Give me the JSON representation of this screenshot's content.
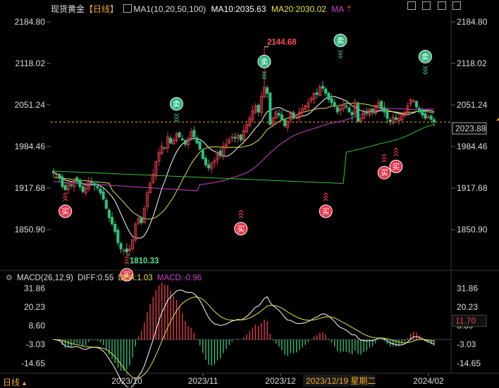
{
  "header": {
    "title": "现货黄金",
    "period": "【日线】",
    "ma_label": "MA1(10,20,50,100)",
    "ma10": "MA10:2035.63",
    "ma20": "MA20:2030.02",
    "ma_more": "MA"
  },
  "toolbar": {
    "timeframe_label": "日线"
  },
  "macd_header": {
    "label": "MACD(26,12,9)",
    "diff": "DIFF:0.55",
    "dea": "DEA:1.03",
    "macd": "MACD:-0.96"
  },
  "price_axis": {
    "ticks": [
      "2184.80",
      "2118.02",
      "2051.24",
      "1984.46",
      "1917.68",
      "1850.90"
    ],
    "tick_values": [
      2184.8,
      2118.02,
      2051.24,
      1984.46,
      1917.68,
      1850.9
    ],
    "current_price": "2023.88",
    "current_value": 2023.88,
    "high_label": "2144.68",
    "high_value": 2144.68,
    "low_label": "1810.33",
    "low_value": 1810.33
  },
  "macd_axis": {
    "ticks": [
      "31.86",
      "20.23",
      "8.60",
      "-3.03",
      "-14.65"
    ],
    "tick_values": [
      31.86,
      20.23,
      8.6,
      -3.03,
      -14.65
    ],
    "current": "11.70",
    "current_value": 11.7
  },
  "date_axis": {
    "labels": [
      "2023/10",
      "2023/11",
      "2023/12",
      "2024/02"
    ],
    "crosshair_date": "2023/12/19 星期二"
  },
  "signals": {
    "buy": "买",
    "sell": "卖"
  },
  "colors": {
    "up": "#e23b4a",
    "down": "#2fbf7a",
    "ma10": "#ffffff",
    "ma20": "#e3e34a",
    "ma50": "#d13fd1",
    "ma100": "#35c435",
    "accent": "#f5a623",
    "buy_badge": "#e8334a",
    "sell_badge": "#2db37a"
  },
  "chart_data": {
    "type": "candlestick",
    "date_range": [
      "2023-09-01",
      "2024-02-20"
    ],
    "price_ylim": [
      1790,
      2195
    ],
    "macd_ylim": [
      -20,
      36
    ],
    "last_close": 2023.88,
    "ohlc_closes": [
      1942,
      1940,
      1935,
      1920,
      1915,
      1925,
      1922,
      1932,
      1928,
      1920,
      1912,
      1918,
      1930,
      1926,
      1922,
      1918,
      1910,
      1900,
      1885,
      1870,
      1860,
      1848,
      1830,
      1820,
      1818,
      1815,
      1820,
      1835,
      1860,
      1868,
      1862,
      1885,
      1910,
      1925,
      1940,
      1960,
      1975,
      1985,
      1982,
      2000,
      1990,
      1995,
      2005,
      2000,
      1995,
      1988,
      1998,
      2008,
      2000,
      1990,
      1980,
      1965,
      1955,
      1950,
      1958,
      1962,
      1975,
      1970,
      1985,
      1988,
      1995,
      2000,
      1998,
      2002,
      1995,
      2010,
      2020,
      2030,
      2042,
      2050,
      2040,
      2065,
      2080,
      2070,
      2020,
      2030,
      2040,
      2035,
      2028,
      2018,
      2025,
      2040,
      2030,
      2032,
      2040,
      2045,
      2050,
      2055,
      2062,
      2070,
      2068,
      2080,
      2078,
      2070,
      2060,
      2055,
      2050,
      2040,
      2045,
      2052,
      2048,
      2040,
      2035,
      2055,
      2025,
      2030,
      2040,
      2038,
      2045,
      2040,
      2050,
      2055,
      2045,
      2040,
      2030,
      2025,
      2032,
      2028,
      2030,
      2035,
      2040,
      2050,
      2060,
      2058,
      2048,
      2040,
      2035,
      2030,
      2032,
      2028,
      2024
    ],
    "macd_diff_start": 0.5,
    "macd_diff_end": 0.55,
    "dea_end": 1.03,
    "macd_end": -0.96
  }
}
